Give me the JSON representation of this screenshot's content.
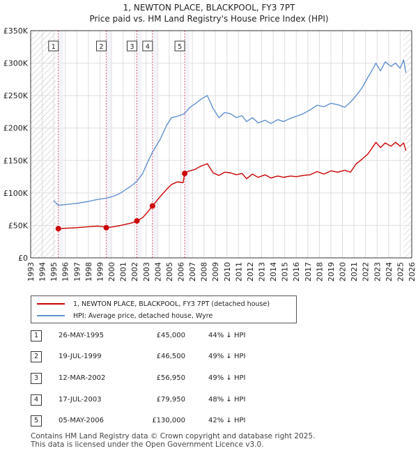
{
  "title": {
    "line1": "1, NEWTON PLACE, BLACKPOOL, FY3 7PT",
    "line2": "Price paid vs. HM Land Registry's House Price Index (HPI)"
  },
  "colors": {
    "price": "#cc0000",
    "hpi": "#6090d0",
    "vline": "#e06070",
    "grid": "#dddddd",
    "shade": "#eef0f8",
    "hatch": "#bbbbbb"
  },
  "chart_data": {
    "type": "line",
    "title": "Price paid vs. HM Land Registry's House Price Index (HPI)",
    "xlim": [
      1993,
      2026
    ],
    "ylim": [
      0,
      350000
    ],
    "x_ticks": [
      1993,
      1994,
      1995,
      1996,
      1997,
      1998,
      1999,
      2000,
      2001,
      2002,
      2003,
      2004,
      2005,
      2006,
      2007,
      2008,
      2009,
      2010,
      2011,
      2012,
      2013,
      2014,
      2015,
      2016,
      2017,
      2018,
      2019,
      2020,
      2021,
      2022,
      2023,
      2024,
      2025,
      2026
    ],
    "y_ticks": [
      {
        "value": 0,
        "label": "£0"
      },
      {
        "value": 50000,
        "label": "£50K"
      },
      {
        "value": 100000,
        "label": "£100K"
      },
      {
        "value": 150000,
        "label": "£150K"
      },
      {
        "value": 200000,
        "label": "£200K"
      },
      {
        "value": 250000,
        "label": "£250K"
      },
      {
        "value": 300000,
        "label": "£300K"
      },
      {
        "value": 350000,
        "label": "£350K"
      }
    ],
    "hatched_ranges": [
      [
        1993,
        1995.2
      ],
      [
        2025.3,
        2026
      ]
    ],
    "series": [
      {
        "name": "1, NEWTON PLACE, BLACKPOOL, FY3 7PT (detached house)",
        "color": "#cc0000",
        "x": [
          1995.4,
          1996,
          1997,
          1998,
          1998.8,
          1999.3,
          1999.55,
          2000.2,
          2000.8,
          2001.3,
          2001.8,
          2002.2,
          2002.7,
          2003.1,
          2003.55,
          2004.2,
          2004.8,
          2005.2,
          2005.7,
          2006.2,
          2006.34,
          2006.6,
          2007.2,
          2007.7,
          2008.3,
          2008.8,
          2009.3,
          2009.8,
          2010.3,
          2010.8,
          2011.3,
          2011.7,
          2012.2,
          2012.7,
          2013.3,
          2013.8,
          2014.4,
          2014.9,
          2015.5,
          2016.0,
          2016.6,
          2017.2,
          2017.8,
          2018.4,
          2019.0,
          2019.6,
          2020.2,
          2020.7,
          2021.2,
          2021.7,
          2022.2,
          2022.6,
          2022.9,
          2023.3,
          2023.7,
          2024.2,
          2024.6,
          2025.0,
          2025.3,
          2025.5
        ],
        "values": [
          45000,
          45500,
          46500,
          48000,
          49000,
          48000,
          46500,
          48000,
          50000,
          52000,
          54000,
          56950,
          62000,
          70000,
          79950,
          94000,
          106000,
          113000,
          117000,
          116000,
          130000,
          133000,
          136000,
          141000,
          145000,
          131000,
          127000,
          132000,
          131000,
          128000,
          130000,
          122000,
          129000,
          124000,
          128000,
          123000,
          126000,
          124000,
          126000,
          125000,
          127000,
          128000,
          133000,
          129000,
          134000,
          132000,
          135000,
          132000,
          145000,
          152000,
          160000,
          170000,
          178000,
          170000,
          177000,
          172000,
          178000,
          172000,
          177000,
          165000
        ]
      },
      {
        "name": "HPI: Average price, detached house, Wyre",
        "color": "#6090d0",
        "x": [
          1995.0,
          1995.4,
          1996,
          1997,
          1998,
          1998.8,
          1999.55,
          2000.2,
          2000.8,
          2001.3,
          2001.8,
          2002.2,
          2002.7,
          2003.1,
          2003.55,
          2004.2,
          2004.8,
          2005.2,
          2005.7,
          2006.3,
          2006.8,
          2007.3,
          2007.8,
          2008.3,
          2008.8,
          2009.3,
          2009.8,
          2010.3,
          2010.8,
          2011.3,
          2011.7,
          2012.2,
          2012.7,
          2013.3,
          2013.8,
          2014.4,
          2014.9,
          2015.5,
          2016.0,
          2016.6,
          2017.2,
          2017.8,
          2018.4,
          2019.0,
          2019.6,
          2020.2,
          2020.7,
          2021.2,
          2021.7,
          2022.2,
          2022.6,
          2022.9,
          2023.3,
          2023.7,
          2024.2,
          2024.6,
          2025.0,
          2025.3,
          2025.5
        ],
        "values": [
          88000,
          81000,
          82000,
          84000,
          87000,
          90000,
          92000,
          95000,
          100000,
          106000,
          112000,
          118000,
          130000,
          146000,
          163000,
          182000,
          205000,
          216000,
          218000,
          222000,
          232000,
          238000,
          245000,
          250000,
          230000,
          216000,
          224000,
          222000,
          216000,
          219000,
          210000,
          216000,
          208000,
          212000,
          207000,
          213000,
          210000,
          215000,
          218000,
          222000,
          228000,
          235000,
          233000,
          238000,
          236000,
          232000,
          240000,
          250000,
          262000,
          278000,
          290000,
          300000,
          288000,
          302000,
          295000,
          300000,
          292000,
          305000,
          285000
        ]
      }
    ],
    "sales": [
      {
        "label": "1",
        "x": 1995.4,
        "value": 45000
      },
      {
        "label": "2",
        "x": 1999.55,
        "value": 46500
      },
      {
        "label": "3",
        "x": 2002.2,
        "value": 56950
      },
      {
        "label": "4",
        "x": 2003.55,
        "value": 79950
      },
      {
        "label": "5",
        "x": 2006.34,
        "value": 130000
      }
    ]
  },
  "legend": {
    "price_label": "1, NEWTON PLACE, BLACKPOOL, FY3 7PT (detached house)",
    "hpi_label": "HPI: Average price, detached house, Wyre"
  },
  "sales_table": [
    {
      "num": "1",
      "date": "26-MAY-1995",
      "price": "£45,000",
      "diff": "44% ↓ HPI"
    },
    {
      "num": "2",
      "date": "19-JUL-1999",
      "price": "£46,500",
      "diff": "49% ↓ HPI"
    },
    {
      "num": "3",
      "date": "12-MAR-2002",
      "price": "£56,950",
      "diff": "49% ↓ HPI"
    },
    {
      "num": "4",
      "date": "17-JUL-2003",
      "price": "£79,950",
      "diff": "48% ↓ HPI"
    },
    {
      "num": "5",
      "date": "05-MAY-2006",
      "price": "£130,000",
      "diff": "42% ↓ HPI"
    }
  ],
  "footer": {
    "line1": "Contains HM Land Registry data © Crown copyright and database right 2025.",
    "line2": "This data is licensed under the Open Government Licence v3.0."
  }
}
